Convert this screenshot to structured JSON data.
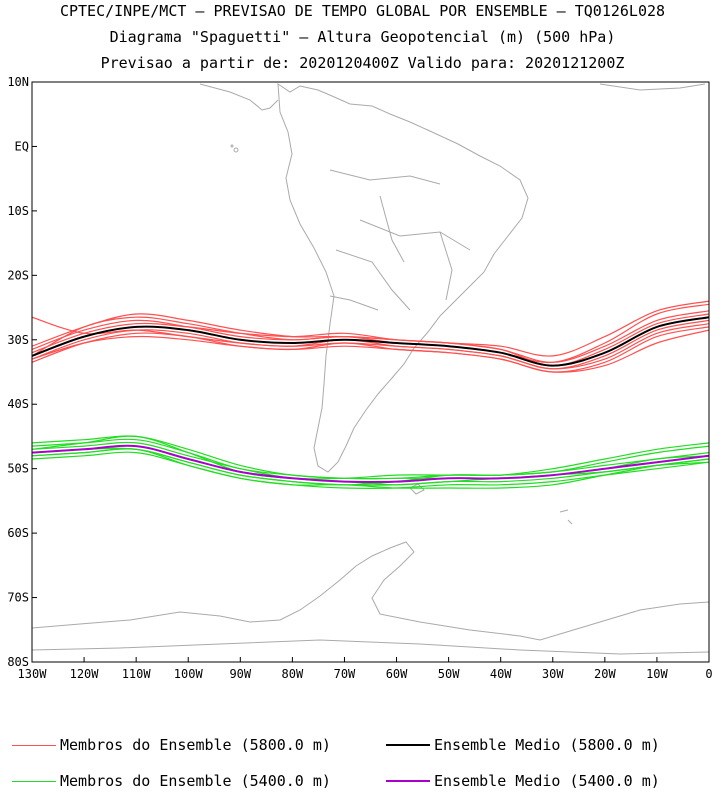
{
  "header": {
    "line1": "CPTEC/INPE/MCT – PREVISAO DE TEMPO GLOBAL POR ENSEMBLE – TQ0126L028",
    "line2": "Diagrama \"Spaguetti\" – Altura Geopotencial (m) (500 hPa)",
    "line3": "Previsao a partir de: 2020120400Z  Valido para: 2020121200Z"
  },
  "axes": {
    "lat_labels": [
      "10N",
      "EQ",
      "10S",
      "20S",
      "30S",
      "40S",
      "50S",
      "60S",
      "70S",
      "80S"
    ],
    "lon_labels": [
      "130W",
      "120W",
      "110W",
      "100W",
      "90W",
      "80W",
      "70W",
      "60W",
      "50W",
      "40W",
      "30W",
      "20W",
      "10W",
      "0"
    ]
  },
  "colors": {
    "members_5800": "#ff5050",
    "mean_5800": "#000000",
    "members_5400": "#22dd22",
    "mean_5400": "#aa00cc",
    "coastline": "#aaaaaa"
  },
  "legend": {
    "members_5800": "Membros do Ensemble (5800.0 m)",
    "mean_5800": "Ensemble Medio (5800.0 m)",
    "members_5400": "Membros do Ensemble (5400.0 m)",
    "mean_5400": "Ensemble Medio (5400.0 m)"
  },
  "chart_data": {
    "type": "line",
    "x_unit": "longitude (degrees, negative = W)",
    "y_unit": "latitude (degrees, negative = S)",
    "xlim": [
      -130,
      0
    ],
    "ylim": [
      -80,
      10
    ],
    "x": [
      -130,
      -120,
      -110,
      -100,
      -90,
      -80,
      -70,
      -60,
      -50,
      -40,
      -30,
      -20,
      -10,
      0
    ],
    "series": [
      {
        "name": "Ensemble Medio (5800.0 m)",
        "contour": 5800,
        "kind": "mean",
        "y": [
          -32.5,
          -29.5,
          -28,
          -28.5,
          -30,
          -30.5,
          -30,
          -30.5,
          -31,
          -32,
          -34,
          -32,
          -28,
          -26.5
        ]
      },
      {
        "name": "Ensemble Medio (5400.0 m)",
        "contour": 5400,
        "kind": "mean",
        "y": [
          -47.5,
          -47,
          -46.5,
          -48.5,
          -50.5,
          -51.5,
          -52,
          -52,
          -51.5,
          -51.5,
          -51,
          -50,
          -49,
          -48
        ]
      },
      {
        "contour": 5800,
        "kind": "member",
        "y": [
          -33,
          -30,
          -28.5,
          -29,
          -30.5,
          -31,
          -30.5,
          -31,
          -31.5,
          -32.5,
          -34.5,
          -32.5,
          -28.5,
          -27
        ]
      },
      {
        "contour": 5800,
        "kind": "member",
        "y": [
          -31.5,
          -28.5,
          -27,
          -28,
          -29.5,
          -30,
          -29.5,
          -30,
          -30.5,
          -31.5,
          -33.5,
          -31,
          -27,
          -25.5
        ]
      },
      {
        "contour": 5800,
        "kind": "member",
        "y": [
          -33.5,
          -30.5,
          -29,
          -29.5,
          -31,
          -31.5,
          -31,
          -31.5,
          -32,
          -33,
          -35,
          -33.5,
          -29.5,
          -28
        ]
      },
      {
        "contour": 5800,
        "kind": "member",
        "y": [
          -32,
          -29,
          -27.5,
          -28,
          -29,
          -29.5,
          -29,
          -30,
          -30.5,
          -31.5,
          -34,
          -31.5,
          -27.5,
          -26
        ]
      },
      {
        "contour": 5800,
        "kind": "member",
        "y": [
          -32.5,
          -28,
          -26.5,
          -27.5,
          -29,
          -30,
          -29.5,
          -30.5,
          -31,
          -32,
          -33.5,
          -30.5,
          -26,
          -24.5
        ]
      },
      {
        "contour": 5800,
        "kind": "member",
        "y": [
          -26.5,
          -29,
          -28.5,
          -29.5,
          -30.5,
          -31,
          -30,
          -31,
          -31.5,
          -32.5,
          -34.5,
          -33,
          -29,
          -27.5
        ]
      },
      {
        "contour": 5800,
        "kind": "member",
        "y": [
          -33,
          -30.5,
          -29.5,
          -30,
          -31,
          -31.5,
          -30.5,
          -31.5,
          -32,
          -33,
          -35,
          -34,
          -30.5,
          -28.5
        ]
      },
      {
        "contour": 5800,
        "kind": "member",
        "y": [
          -31,
          -28,
          -26,
          -27,
          -28.5,
          -29.5,
          -29.5,
          -30,
          -30.5,
          -31,
          -32.5,
          -29.5,
          -25.5,
          -24
        ]
      },
      {
        "contour": 5400,
        "kind": "member",
        "y": [
          -47,
          -46.5,
          -46,
          -48,
          -50,
          -51.5,
          -52,
          -52.5,
          -52,
          -52,
          -51.5,
          -50.5,
          -49.5,
          -48.5
        ]
      },
      {
        "contour": 5400,
        "kind": "member",
        "y": [
          -48,
          -47.5,
          -47,
          -49,
          -51,
          -52,
          -52.5,
          -52,
          -51,
          -51,
          -50.5,
          -49,
          -47.5,
          -46.5
        ]
      },
      {
        "contour": 5400,
        "kind": "member",
        "y": [
          -46.5,
          -46,
          -45.5,
          -47.5,
          -50,
          -51,
          -51.5,
          -51.5,
          -51,
          -51,
          -50,
          -48.5,
          -47,
          -46
        ]
      },
      {
        "contour": 5400,
        "kind": "member",
        "y": [
          -48,
          -47.5,
          -47,
          -49.5,
          -51.5,
          -52.5,
          -53,
          -53,
          -52.5,
          -52.5,
          -52,
          -51,
          -50,
          -49
        ]
      },
      {
        "contour": 5400,
        "kind": "member",
        "y": [
          -46,
          -45.5,
          -45,
          -47,
          -49.5,
          -51,
          -51.5,
          -51.5,
          -51.5,
          -51.5,
          -51,
          -50,
          -48.5,
          -48
        ]
      },
      {
        "contour": 5400,
        "kind": "member",
        "y": [
          -48.5,
          -48,
          -47.5,
          -49.5,
          -51.5,
          -52.5,
          -52.5,
          -53,
          -53,
          -53,
          -52.5,
          -51,
          -49.5,
          -48.5
        ]
      },
      {
        "contour": 5400,
        "kind": "member",
        "y": [
          -47,
          -46,
          -45,
          -47.5,
          -50.5,
          -51.5,
          -51.5,
          -51,
          -51,
          -51,
          -50.5,
          -49.5,
          -48.5,
          -47.5
        ]
      },
      {
        "contour": 5400,
        "kind": "member",
        "y": [
          -47.5,
          -47,
          -47,
          -49,
          -51,
          -52,
          -52.5,
          -52.5,
          -52,
          -51.5,
          -51,
          -50.5,
          -49.5,
          -49
        ]
      }
    ]
  }
}
